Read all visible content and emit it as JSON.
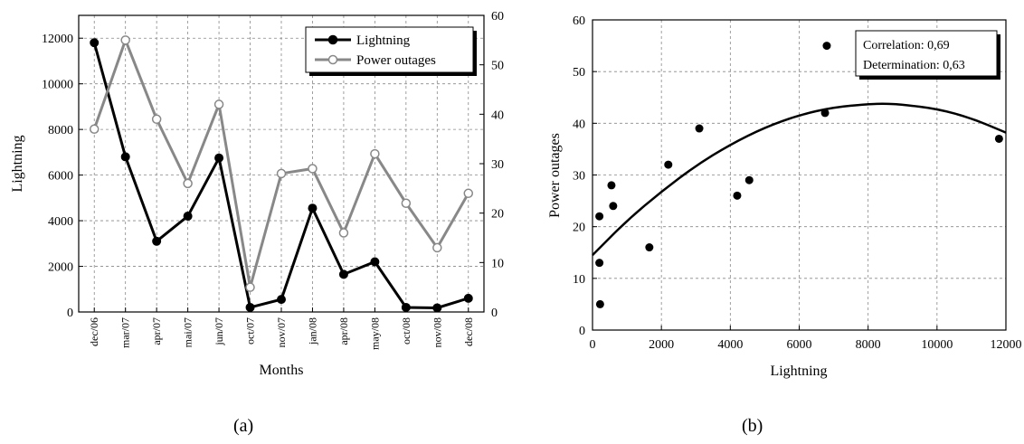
{
  "chart_data": [
    {
      "type": "line",
      "panel_caption": "(a)",
      "xlabel": "Months",
      "ylabel": "Lightning",
      "y2label": "Power outages",
      "categories": [
        "dec/06",
        "mar/07",
        "apr/07",
        "mai/07",
        "jun/07",
        "oct/07",
        "nov/07",
        "jan/08",
        "apr/08",
        "may/08",
        "oct/08",
        "nov/08",
        "dec/08"
      ],
      "ylim": [
        0,
        13000
      ],
      "yticks": [
        0,
        2000,
        4000,
        6000,
        8000,
        10000,
        12000
      ],
      "y2lim": [
        0,
        60
      ],
      "y2ticks": [
        0,
        10,
        20,
        30,
        40,
        50,
        60
      ],
      "grid": true,
      "legend_position": "top-right",
      "series": [
        {
          "name": "Lightning",
          "axis": "left",
          "color": "#000000",
          "marker": "filled-circle",
          "values": [
            11800,
            6800,
            3100,
            4200,
            6750,
            200,
            550,
            4550,
            1650,
            2200,
            200,
            180,
            600
          ]
        },
        {
          "name": "Power outages",
          "axis": "right",
          "color": "#888888",
          "marker": "open-circle",
          "values": [
            37,
            55,
            39,
            26,
            42,
            5,
            28,
            29,
            16,
            32,
            22,
            13,
            24
          ]
        }
      ]
    },
    {
      "type": "scatter",
      "panel_caption": "(b)",
      "xlabel": "Lightning",
      "ylabel": "Power outages",
      "xlim": [
        0,
        12000
      ],
      "xticks": [
        0,
        2000,
        4000,
        6000,
        8000,
        10000,
        12000
      ],
      "ylim": [
        0,
        60
      ],
      "yticks": [
        0,
        10,
        20,
        30,
        40,
        50,
        60
      ],
      "grid": true,
      "points": [
        {
          "x": 200,
          "y": 22
        },
        {
          "x": 200,
          "y": 13
        },
        {
          "x": 220,
          "y": 5
        },
        {
          "x": 550,
          "y": 28
        },
        {
          "x": 600,
          "y": 24
        },
        {
          "x": 1650,
          "y": 16
        },
        {
          "x": 2200,
          "y": 32
        },
        {
          "x": 3100,
          "y": 39
        },
        {
          "x": 4200,
          "y": 26
        },
        {
          "x": 4550,
          "y": 29
        },
        {
          "x": 6750,
          "y": 42
        },
        {
          "x": 6800,
          "y": 55
        },
        {
          "x": 11800,
          "y": 37
        }
      ],
      "trend": {
        "type": "quadratic",
        "x": [
          0,
          1000,
          2000,
          3000,
          4000,
          5000,
          6000,
          7000,
          8000,
          8500,
          9000,
          10000,
          11000,
          12000
        ],
        "y": [
          14.5,
          21.2,
          26.8,
          31.8,
          35.9,
          39.2,
          41.6,
          43.1,
          43.7,
          43.8,
          43.6,
          42.8,
          41.0,
          38.2
        ]
      },
      "annotation": {
        "correlation": "Correlation: 0,69",
        "determination": "Determination: 0,63"
      }
    }
  ]
}
